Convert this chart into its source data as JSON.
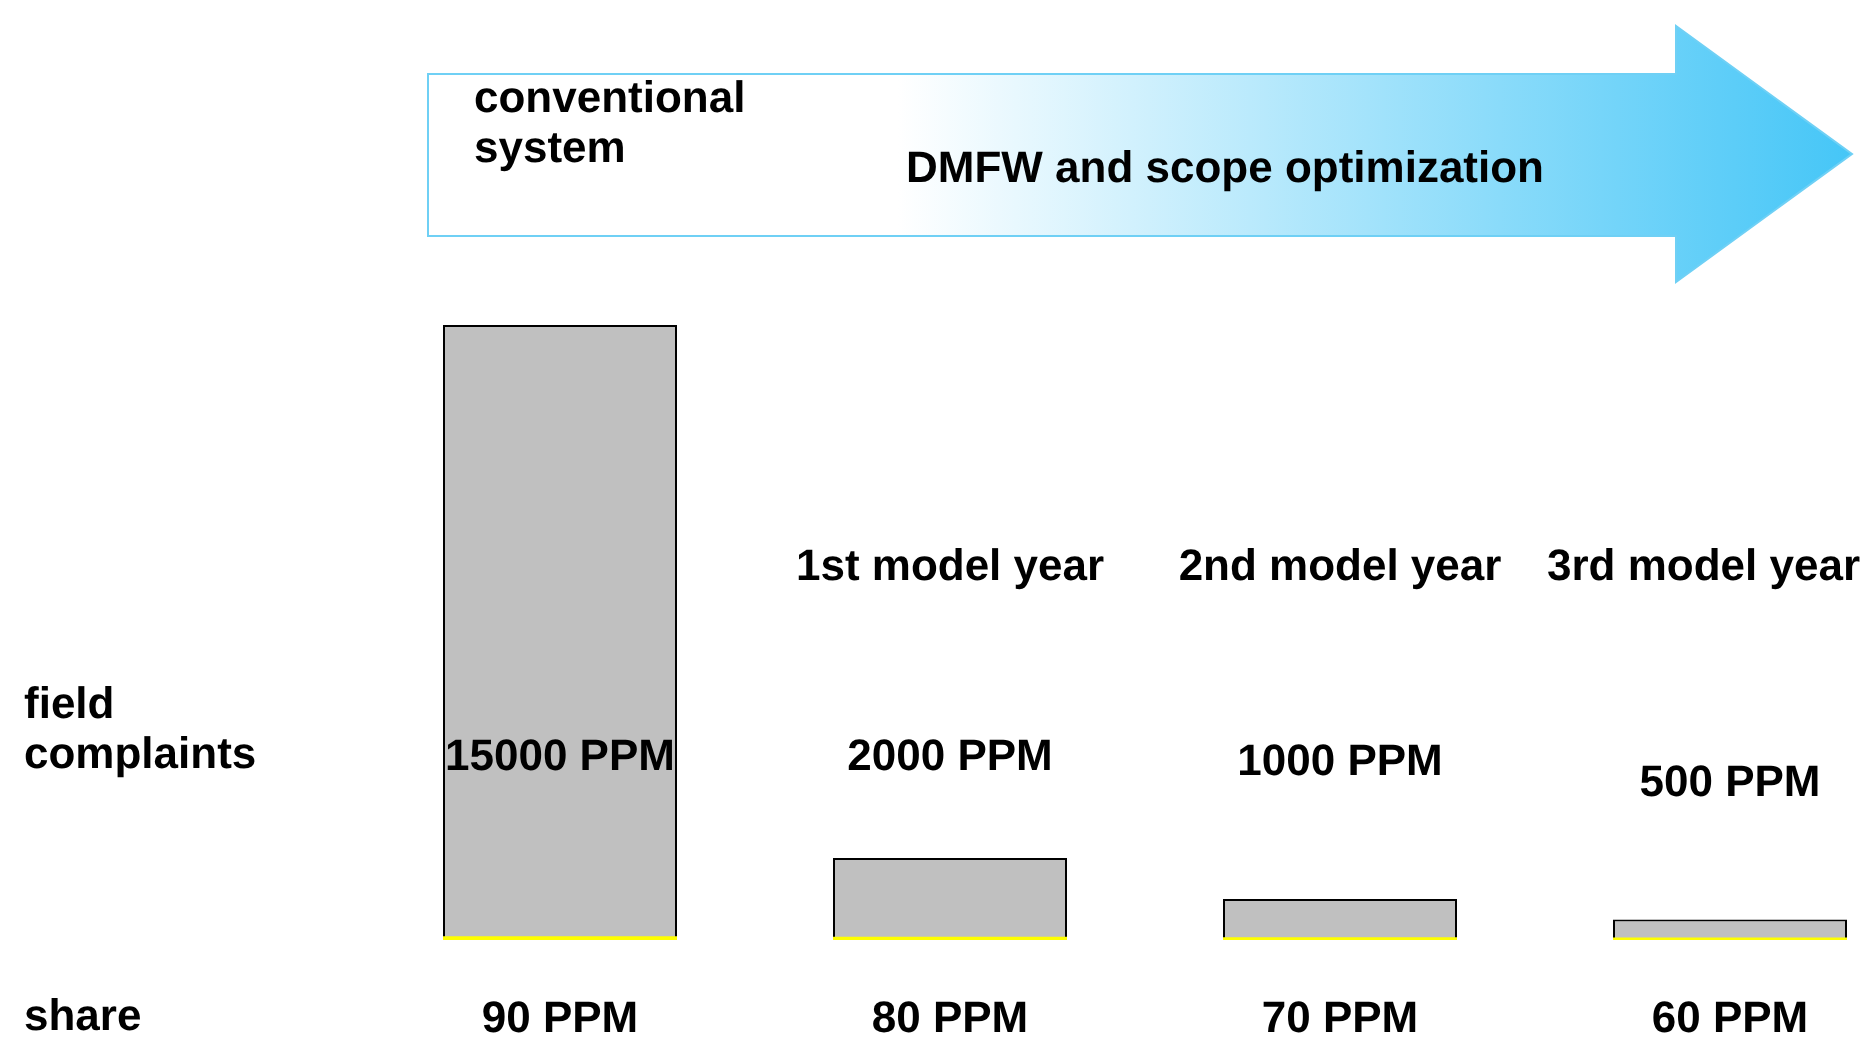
{
  "chart_data": {
    "type": "bar",
    "categories": [
      null,
      "1st model year",
      "2nd model year",
      "3rd model year"
    ],
    "series": [
      {
        "color": "#ffff00",
        "values": [
          90,
          80,
          70,
          60
        ],
        "value_labels": [
          "90 PPM",
          "80 PPM",
          "70 PPM",
          "60 PPM"
        ]
      },
      {
        "color": "#c0c0c0",
        "values": [
          15000,
          2000,
          1000,
          500
        ],
        "value_labels": [
          "15000 PPM",
          "2000 PPM",
          "1000 PPM",
          "500 PPM"
        ]
      }
    ],
    "annotations": [
      "conventional system",
      "DMFW and scope optimization",
      "field complaints",
      "share"
    ],
    "legend": false,
    "tick_labels": "x"
  }
}
